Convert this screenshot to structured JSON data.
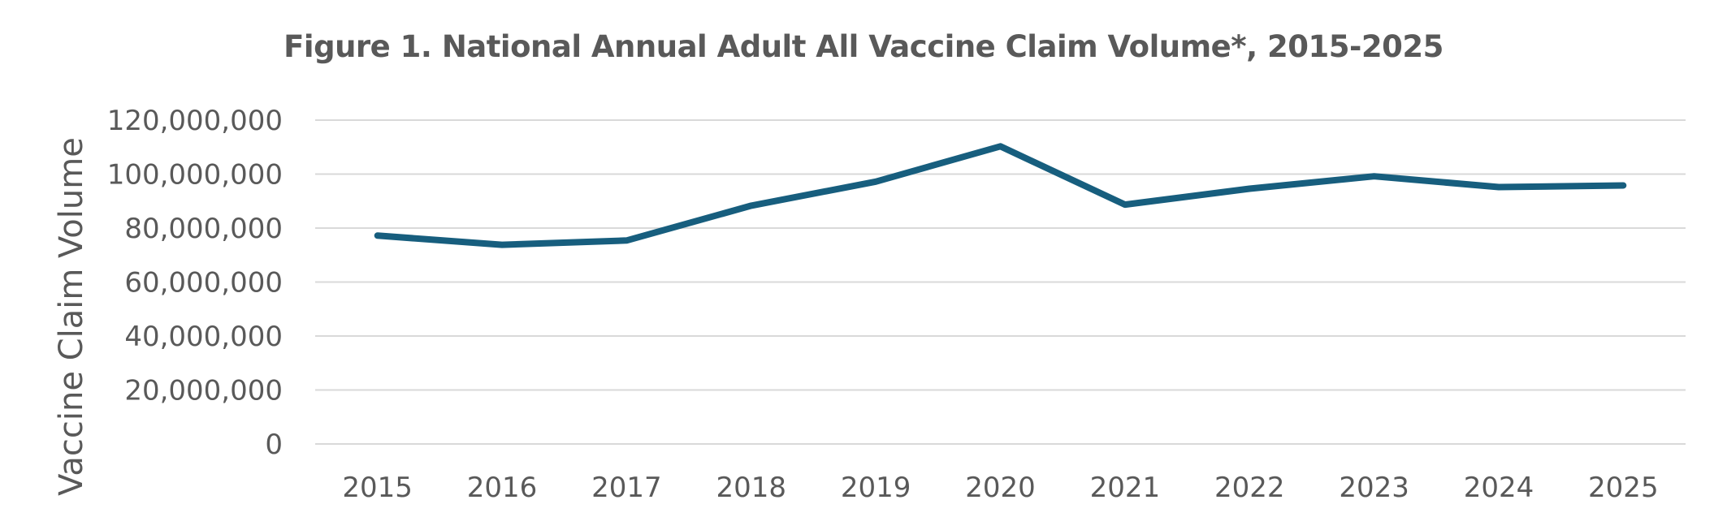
{
  "chart_data": {
    "type": "line",
    "title": "Figure 1. National Annual Adult All Vaccine Claim Volume*, 2015-2025",
    "xlabel": "",
    "ylabel": "Vaccine Claim Volume",
    "ylim": [
      0,
      120000000
    ],
    "y_ticks": [
      "0",
      "20,000,000",
      "40,000,000",
      "60,000,000",
      "80,000,000",
      "100,000,000",
      "120,000,000"
    ],
    "y_tick_values": [
      0,
      20000000,
      40000000,
      60000000,
      80000000,
      100000000,
      120000000
    ],
    "categories": [
      "2015",
      "2016",
      "2017",
      "2018",
      "2019",
      "2020",
      "2021",
      "2022",
      "2023",
      "2024",
      "2025"
    ],
    "values": [
      77200000,
      73800000,
      75400000,
      88300000,
      97200000,
      110300000,
      88700000,
      94600000,
      99200000,
      95200000,
      95800000
    ],
    "grid": true,
    "legend": "none",
    "colors": {
      "line": "#175E7E",
      "grid": "#D9D9D9",
      "text": "#595959"
    }
  }
}
